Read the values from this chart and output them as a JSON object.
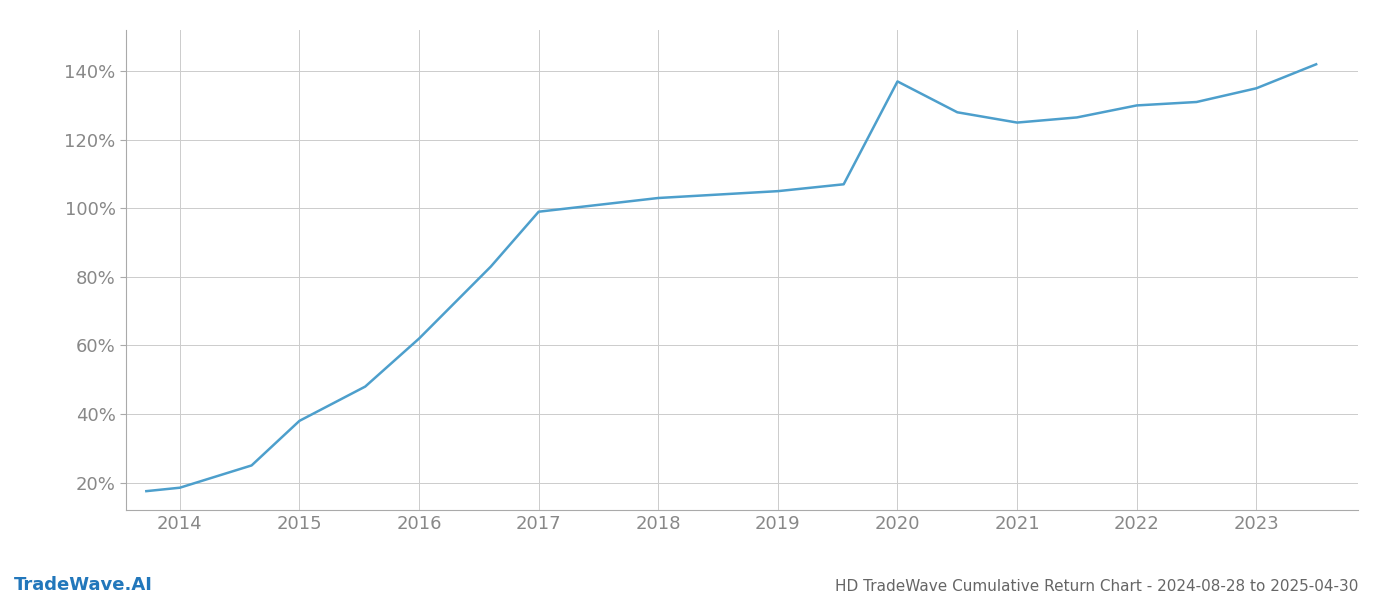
{
  "x_values": [
    2013.72,
    2014.0,
    2014.6,
    2015.0,
    2015.55,
    2016.0,
    2016.6,
    2017.0,
    2017.5,
    2018.0,
    2018.5,
    2019.0,
    2019.55,
    2020.0,
    2020.5,
    2021.0,
    2021.5,
    2022.0,
    2022.5,
    2023.0,
    2023.5
  ],
  "y_values": [
    17.5,
    18.5,
    25,
    38,
    48,
    62,
    83,
    99,
    101,
    103,
    104,
    105,
    107,
    137,
    128,
    125,
    126.5,
    130,
    131,
    135,
    142
  ],
  "line_color": "#4d9fcc",
  "line_width": 1.8,
  "title": "HD TradeWave Cumulative Return Chart - 2024-08-28 to 2025-04-30",
  "watermark": "TradeWave.AI",
  "x_ticks": [
    2014,
    2015,
    2016,
    2017,
    2018,
    2019,
    2020,
    2021,
    2022,
    2023
  ],
  "y_ticks": [
    20,
    40,
    60,
    80,
    100,
    120,
    140
  ],
  "xlim": [
    2013.55,
    2023.85
  ],
  "ylim": [
    12,
    152
  ],
  "grid_color": "#cccccc",
  "grid_linewidth": 0.7,
  "background_color": "#ffffff",
  "tick_color": "#888888",
  "title_color": "#666666",
  "watermark_color": "#2277bb",
  "title_fontsize": 11,
  "tick_fontsize": 13,
  "watermark_fontsize": 13,
  "spine_color": "#aaaaaa"
}
